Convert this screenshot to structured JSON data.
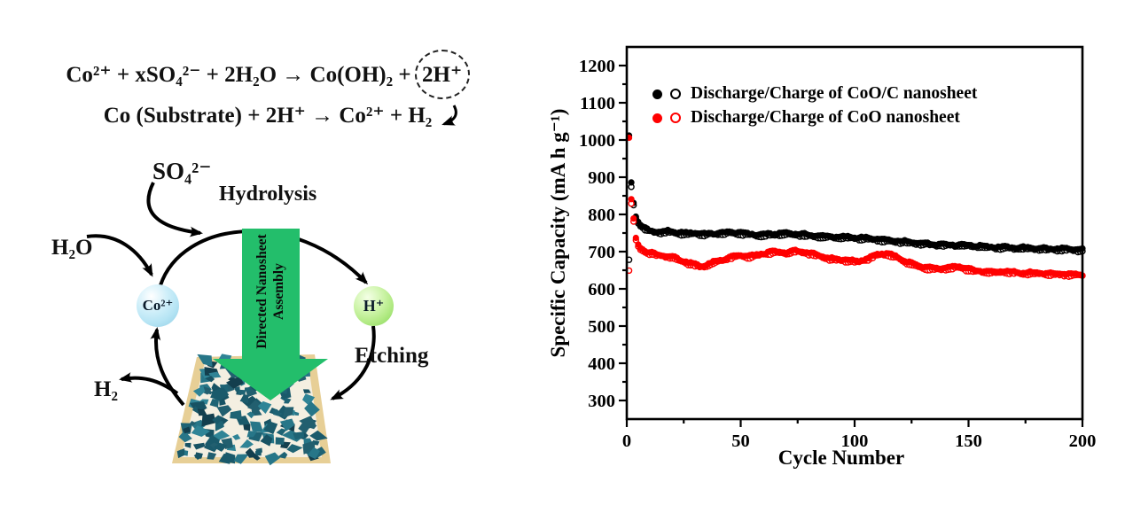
{
  "equations": {
    "line1_pre": "Co²⁺ + xSO₄²⁻ + 2H₂O  →  Co(OH)₂ +",
    "line1_circled": "2H⁺",
    "line2": "Co (Substrate) + 2H⁺ → Co²⁺ + H₂"
  },
  "diagram": {
    "labels": {
      "so4": "SO₄²⁻",
      "hydrolysis": "Hydrolysis",
      "h2o": "H₂O",
      "h2": "H₂",
      "etching": "Etching"
    },
    "species": {
      "cobalt_ion": "Co²⁺",
      "proton": "H⁺"
    },
    "green_arrow": {
      "line1": "Directed Nanosheet",
      "line2": "Assembly"
    },
    "colors": {
      "arrow_green": "#23BE6B",
      "cobalt_sphere_blue": "#BDE7F6",
      "proton_sphere_green": "#BDEF96",
      "substrate_tan": "#E7CF96",
      "nanosheet_teal": "#1E6374"
    }
  },
  "chart_data": {
    "type": "scatter",
    "title": "",
    "xlabel": "Cycle Number",
    "ylabel": "Specific Capacity (mA h g⁻¹)",
    "xlim": [
      0,
      200
    ],
    "ylim": [
      250,
      1250
    ],
    "xticks": [
      0,
      50,
      100,
      150,
      200
    ],
    "yticks": [
      300,
      400,
      500,
      600,
      700,
      800,
      900,
      1000,
      1100,
      1200
    ],
    "x_minor_step": 25,
    "y_minor_step": 50,
    "grid": false,
    "legend_position": "top-inside",
    "points_per_series": 200,
    "legend": [
      {
        "label": "Discharge/Charge of CoO/C nanosheet",
        "color": "#000000"
      },
      {
        "label": "Discharge/Charge of CoO nanosheet",
        "color": "#FF0000"
      }
    ],
    "series": [
      {
        "name": "CoO/C nanosheet charge",
        "color": "#000000",
        "marker": "open",
        "anchors": [
          [
            1,
            678
          ],
          [
            2,
            874
          ],
          [
            3,
            825
          ],
          [
            4,
            789
          ],
          [
            5,
            776
          ],
          [
            6,
            768
          ],
          [
            8,
            759
          ],
          [
            10,
            753
          ],
          [
            14,
            749
          ],
          [
            18,
            751
          ],
          [
            22,
            748
          ],
          [
            26,
            746
          ],
          [
            30,
            747
          ],
          [
            34,
            744
          ],
          [
            38,
            745
          ],
          [
            42,
            747
          ],
          [
            46,
            749
          ],
          [
            50,
            747
          ],
          [
            54,
            744
          ],
          [
            58,
            742
          ],
          [
            62,
            743
          ],
          [
            66,
            745
          ],
          [
            70,
            746
          ],
          [
            74,
            745
          ],
          [
            78,
            742
          ],
          [
            82,
            740
          ],
          [
            86,
            738
          ],
          [
            90,
            737
          ],
          [
            94,
            735
          ],
          [
            98,
            736
          ],
          [
            102,
            734
          ],
          [
            106,
            732
          ],
          [
            110,
            730
          ],
          [
            114,
            727
          ],
          [
            118,
            725
          ],
          [
            122,
            723
          ],
          [
            126,
            721
          ],
          [
            130,
            719
          ],
          [
            134,
            717
          ],
          [
            138,
            716
          ],
          [
            142,
            715
          ],
          [
            146,
            715
          ],
          [
            150,
            714
          ],
          [
            154,
            712
          ],
          [
            158,
            710
          ],
          [
            162,
            709
          ],
          [
            166,
            708
          ],
          [
            170,
            707
          ],
          [
            174,
            707
          ],
          [
            178,
            706
          ],
          [
            182,
            705
          ],
          [
            186,
            704
          ],
          [
            190,
            704
          ],
          [
            194,
            703
          ],
          [
            198,
            702
          ],
          [
            200,
            702
          ]
        ]
      },
      {
        "name": "CoO/C nanosheet discharge",
        "color": "#000000",
        "marker": "filled",
        "anchors": [
          [
            1,
            1012
          ],
          [
            2,
            886
          ],
          [
            3,
            831
          ],
          [
            4,
            794
          ],
          [
            5,
            780
          ],
          [
            6,
            772
          ],
          [
            8,
            763
          ],
          [
            10,
            757
          ],
          [
            14,
            753
          ],
          [
            18,
            755
          ],
          [
            22,
            752
          ],
          [
            26,
            750
          ],
          [
            30,
            751
          ],
          [
            34,
            748
          ],
          [
            38,
            749
          ],
          [
            42,
            751
          ],
          [
            46,
            753
          ],
          [
            50,
            751
          ],
          [
            54,
            748
          ],
          [
            58,
            746
          ],
          [
            62,
            747
          ],
          [
            66,
            749
          ],
          [
            70,
            750
          ],
          [
            74,
            749
          ],
          [
            78,
            746
          ],
          [
            82,
            744
          ],
          [
            86,
            742
          ],
          [
            90,
            741
          ],
          [
            94,
            739
          ],
          [
            98,
            740
          ],
          [
            102,
            738
          ],
          [
            106,
            736
          ],
          [
            110,
            734
          ],
          [
            114,
            731
          ],
          [
            118,
            729
          ],
          [
            122,
            727
          ],
          [
            126,
            725
          ],
          [
            130,
            723
          ],
          [
            134,
            721
          ],
          [
            138,
            720
          ],
          [
            142,
            719
          ],
          [
            146,
            719
          ],
          [
            150,
            718
          ],
          [
            154,
            716
          ],
          [
            158,
            714
          ],
          [
            162,
            713
          ],
          [
            166,
            712
          ],
          [
            170,
            711
          ],
          [
            174,
            711
          ],
          [
            178,
            710
          ],
          [
            182,
            709
          ],
          [
            186,
            708
          ],
          [
            190,
            708
          ],
          [
            194,
            707
          ],
          [
            198,
            706
          ],
          [
            200,
            706
          ]
        ]
      },
      {
        "name": "CoO nanosheet charge",
        "color": "#FF0000",
        "marker": "open",
        "anchors": [
          [
            1,
            649
          ],
          [
            2,
            829
          ],
          [
            3,
            781
          ],
          [
            4,
            731
          ],
          [
            5,
            714
          ],
          [
            6,
            705
          ],
          [
            8,
            698
          ],
          [
            10,
            694
          ],
          [
            13,
            689
          ],
          [
            16,
            686
          ],
          [
            20,
            683
          ],
          [
            24,
            673
          ],
          [
            28,
            665
          ],
          [
            32,
            658
          ],
          [
            35,
            660
          ],
          [
            38,
            668
          ],
          [
            42,
            676
          ],
          [
            46,
            683
          ],
          [
            50,
            687
          ],
          [
            54,
            684
          ],
          [
            58,
            689
          ],
          [
            62,
            694
          ],
          [
            66,
            696
          ],
          [
            70,
            694
          ],
          [
            74,
            698
          ],
          [
            78,
            696
          ],
          [
            82,
            690
          ],
          [
            86,
            683
          ],
          [
            90,
            677
          ],
          [
            94,
            675
          ],
          [
            98,
            673
          ],
          [
            102,
            671
          ],
          [
            106,
            678
          ],
          [
            110,
            690
          ],
          [
            114,
            692
          ],
          [
            118,
            684
          ],
          [
            122,
            671
          ],
          [
            126,
            662
          ],
          [
            130,
            655
          ],
          [
            134,
            652
          ],
          [
            138,
            651
          ],
          [
            142,
            654
          ],
          [
            146,
            656
          ],
          [
            150,
            649
          ],
          [
            154,
            645
          ],
          [
            158,
            643
          ],
          [
            162,
            642
          ],
          [
            166,
            644
          ],
          [
            170,
            641
          ],
          [
            174,
            639
          ],
          [
            178,
            640
          ],
          [
            182,
            639
          ],
          [
            186,
            637
          ],
          [
            190,
            637
          ],
          [
            194,
            636
          ],
          [
            198,
            635
          ],
          [
            200,
            635
          ]
        ]
      },
      {
        "name": "CoO nanosheet discharge",
        "color": "#FF0000",
        "marker": "filled",
        "anchors": [
          [
            1,
            1006
          ],
          [
            2,
            841
          ],
          [
            3,
            789
          ],
          [
            4,
            737
          ],
          [
            5,
            719
          ],
          [
            6,
            710
          ],
          [
            8,
            702
          ],
          [
            10,
            698
          ],
          [
            13,
            693
          ],
          [
            16,
            690
          ],
          [
            20,
            687
          ],
          [
            24,
            677
          ],
          [
            28,
            669
          ],
          [
            32,
            662
          ],
          [
            35,
            664
          ],
          [
            38,
            672
          ],
          [
            42,
            680
          ],
          [
            46,
            687
          ],
          [
            50,
            691
          ],
          [
            54,
            688
          ],
          [
            58,
            693
          ],
          [
            62,
            698
          ],
          [
            66,
            700
          ],
          [
            70,
            698
          ],
          [
            74,
            702
          ],
          [
            78,
            700
          ],
          [
            82,
            694
          ],
          [
            86,
            687
          ],
          [
            90,
            681
          ],
          [
            94,
            679
          ],
          [
            98,
            677
          ],
          [
            102,
            675
          ],
          [
            106,
            682
          ],
          [
            110,
            694
          ],
          [
            114,
            696
          ],
          [
            118,
            688
          ],
          [
            122,
            675
          ],
          [
            126,
            666
          ],
          [
            130,
            659
          ],
          [
            134,
            656
          ],
          [
            138,
            655
          ],
          [
            142,
            658
          ],
          [
            146,
            660
          ],
          [
            150,
            653
          ],
          [
            154,
            649
          ],
          [
            158,
            647
          ],
          [
            162,
            646
          ],
          [
            166,
            648
          ],
          [
            170,
            645
          ],
          [
            174,
            643
          ],
          [
            178,
            644
          ],
          [
            182,
            643
          ],
          [
            186,
            641
          ],
          [
            190,
            641
          ],
          [
            194,
            640
          ],
          [
            198,
            639
          ],
          [
            200,
            639
          ]
        ]
      }
    ]
  }
}
